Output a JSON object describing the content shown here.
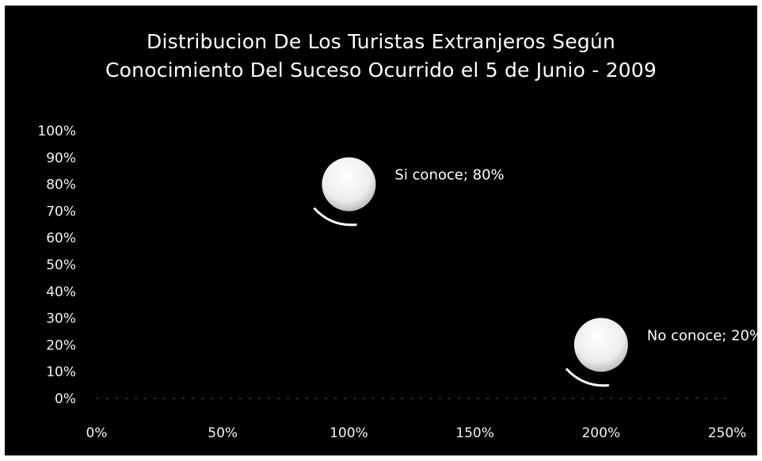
{
  "chart_data": {
    "type": "scatter",
    "title_lines": [
      "Distribucion De Los Turistas Extranjeros Según",
      "Conocimiento Del Suceso Ocurrido el 5 de Junio - 2009"
    ],
    "xlabel": "",
    "ylabel": "",
    "xlim": [
      0,
      2.5
    ],
    "ylim": [
      0,
      1.0
    ],
    "x_ticks": [
      "0%",
      "50%",
      "100%",
      "150%",
      "200%",
      "250%"
    ],
    "y_ticks": [
      "0%",
      "10%",
      "20%",
      "30%",
      "40%",
      "50%",
      "60%",
      "70%",
      "80%",
      "90%",
      "100%"
    ],
    "grid": false,
    "series": [
      {
        "points": [
          {
            "x": 1.0,
            "y": 0.8,
            "label": "Si conoce; 80%"
          },
          {
            "x": 2.0,
            "y": 0.2,
            "label": "No conoce; 20%"
          }
        ]
      }
    ],
    "colors": {
      "background": "#000000",
      "marker": "#ffffff",
      "text": "#ffffff"
    }
  }
}
